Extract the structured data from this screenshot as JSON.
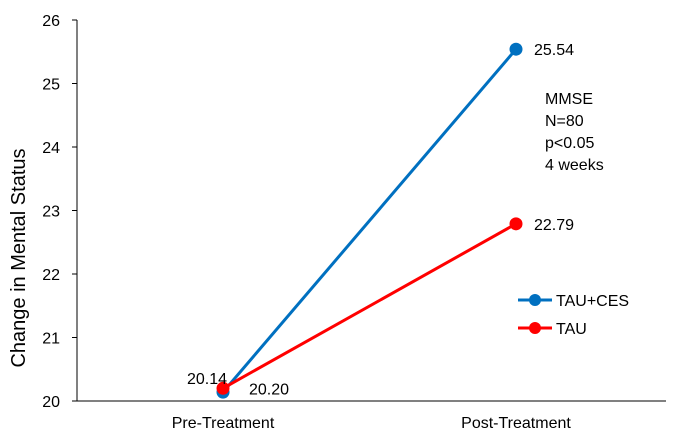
{
  "chart_data": {
    "type": "line",
    "categories": [
      "Pre-Treatment",
      "Post-Treatment"
    ],
    "ylabel": "Change in Mental Status",
    "xlabel": "",
    "ylim": [
      20,
      26
    ],
    "yticks": [
      "20",
      "21",
      "22",
      "23",
      "24",
      "25",
      "26"
    ],
    "grid": false,
    "legend_position": "right",
    "series": [
      {
        "name": "TAU+CES",
        "color": "#0070C0",
        "values": [
          20.14,
          25.54
        ],
        "labels": [
          "20.14",
          "25.54"
        ]
      },
      {
        "name": "TAU",
        "color": "#FF0000",
        "values": [
          20.2,
          22.79
        ],
        "labels": [
          "20.20",
          "22.79"
        ]
      }
    ],
    "annotation": [
      "MMSE",
      "N=80",
      "p<0.05",
      "4 weeks"
    ]
  }
}
